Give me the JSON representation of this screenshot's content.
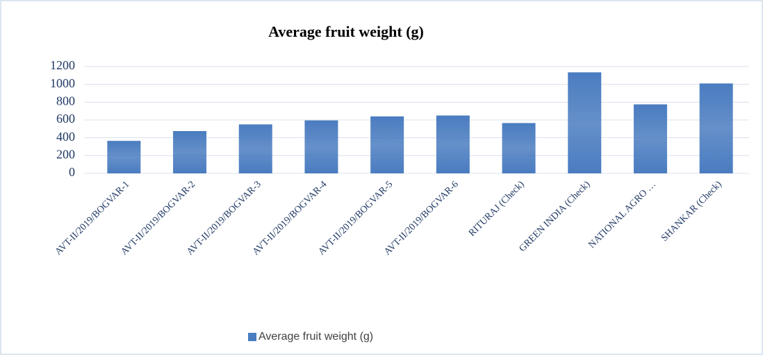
{
  "chart_data": {
    "type": "bar",
    "title": "Average fruit weight (g)",
    "categories": [
      "AVT-II/2019/BOGVAR-1",
      "AVT-II/2019/BOGVAR-2",
      "AVT-II/2019/BOGVAR-3",
      "AVT-II/2019/BOGVAR-4",
      "AVT-II/2019/BOGVAR-5",
      "AVT-II/2019/BOGVAR-6",
      "RITURAJ (Check)",
      "GREEN INDIA (Check)",
      "NATIONAL AGRO …",
      "SHANKAR (Check)"
    ],
    "series": [
      {
        "name": "Average fruit weight (g)",
        "color": "#4a7cc0",
        "values": [
          365,
          475,
          550,
          595,
          640,
          650,
          565,
          1135,
          775,
          1010
        ]
      }
    ],
    "ylim": [
      0,
      1200
    ],
    "yticks": [
      0,
      200,
      400,
      600,
      800,
      1000,
      1200
    ],
    "grid": true,
    "legend": "bottom"
  }
}
